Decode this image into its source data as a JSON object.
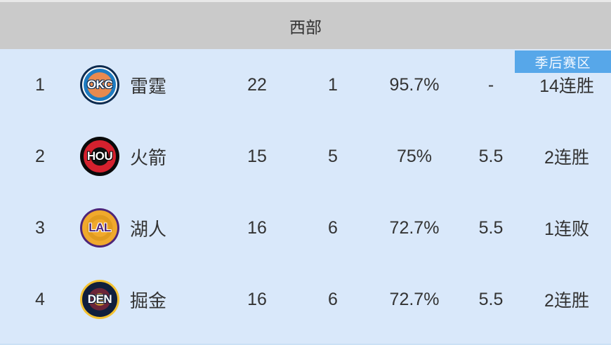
{
  "header": {
    "title": "西部"
  },
  "playoff_badge": {
    "label": "季后赛区"
  },
  "colors": {
    "header_bg": "#CACACA",
    "top_strip": "#E8E8E8",
    "table_bg": "#D9E8FA",
    "badge_bg": "#57A7E9",
    "badge_text": "#F2F8FF",
    "text": "#333333",
    "bottom_strip": "#CBE0F5"
  },
  "table": {
    "columns": [
      "rank",
      "logo",
      "name",
      "wins",
      "losses",
      "win_pct",
      "games_behind",
      "streak"
    ],
    "rows": [
      {
        "rank": "1",
        "name": "雷霆",
        "wins": "22",
        "losses": "1",
        "pct": "95.7%",
        "gb": "-",
        "streak": "14连胜",
        "logo": {
          "abbr": "OKC",
          "icon": "okc-thunder-logo",
          "ring": "#0D2B4F",
          "ring2": "#FFFFFF",
          "band": "#1E7CC2",
          "inner": "#E98A4F",
          "inner_pct": 64,
          "inner2": "",
          "inner2_pct": 0,
          "text": "#FFFFFF",
          "stroke": "#0D2B4F"
        }
      },
      {
        "rank": "2",
        "name": "火箭",
        "wins": "15",
        "losses": "5",
        "pct": "75%",
        "gb": "5.5",
        "streak": "2连胜",
        "logo": {
          "abbr": "HOU",
          "icon": "hou-rockets-logo",
          "ring": "#0A0A0A",
          "ring2": "#0A0A0A",
          "band": "#D5212E",
          "inner": "#111111",
          "inner_pct": 46,
          "inner2": "",
          "inner2_pct": 0,
          "text": "#FFFFFF",
          "stroke": "#000000"
        }
      },
      {
        "rank": "3",
        "name": "湖人",
        "wins": "16",
        "losses": "6",
        "pct": "72.7%",
        "gb": "5.5",
        "streak": "1连败",
        "logo": {
          "abbr": "LAL",
          "icon": "lal-lakers-logo",
          "ring": "#4E2578",
          "ring2": "#F0A92C",
          "band": "#F0A92C",
          "inner": "#E09B1F",
          "inner_pct": 66,
          "inner2": "#F0A92C",
          "inner2_pct": 44,
          "text": "#4E2578",
          "stroke": "#FFFFFF"
        }
      },
      {
        "rank": "4",
        "name": "掘金",
        "wins": "16",
        "losses": "6",
        "pct": "72.7%",
        "gb": "5.5",
        "streak": "2连胜",
        "logo": {
          "abbr": "DEN",
          "icon": "den-nuggets-logo",
          "ring": "#F3C12F",
          "ring2": "#101F3C",
          "band": "#101F3C",
          "inner": "#6B2438",
          "inner_pct": 58,
          "inner2": "#B8862F",
          "inner2_pct": 32,
          "text": "#FFFFFF",
          "stroke": "#101F3C"
        }
      }
    ]
  }
}
